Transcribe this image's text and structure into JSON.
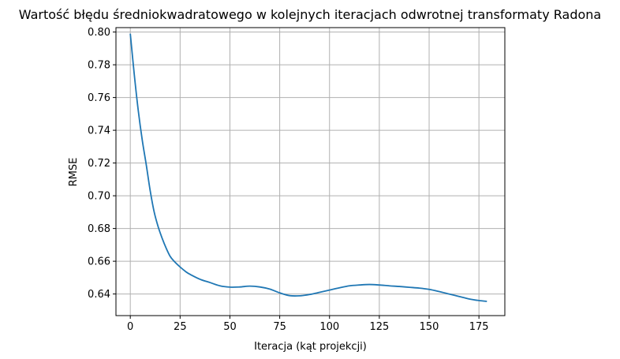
{
  "chart_data": {
    "type": "line",
    "title": "Wartość błędu średniokwadratowego w kolejnych iteracjach odwrotnej transformaty Radona",
    "xlabel": "Iteracja (kąt projekcji)",
    "ylabel": "RMSE",
    "xlim": [
      -7.2,
      188.0
    ],
    "ylim": [
      0.6268,
      0.8027
    ],
    "xticks": [
      0,
      25,
      50,
      75,
      100,
      125,
      150,
      175
    ],
    "xtick_labels": [
      "0",
      "25",
      "50",
      "75",
      "100",
      "125",
      "150",
      "175"
    ],
    "yticks": [
      0.64,
      0.66,
      0.68,
      0.7,
      0.72,
      0.74,
      0.76,
      0.78,
      0.8
    ],
    "ytick_labels": [
      "0.64",
      "0.66",
      "0.68",
      "0.70",
      "0.72",
      "0.74",
      "0.76",
      "0.78",
      "0.80"
    ],
    "grid": true,
    "line_color": "#1f77b4",
    "series": [
      {
        "x": [
          0,
          2,
          4,
          6,
          8,
          10,
          12,
          14,
          16,
          18,
          20,
          22,
          25,
          28,
          30,
          35,
          40,
          45,
          50,
          55,
          60,
          65,
          70,
          75,
          80,
          85,
          90,
          95,
          100,
          105,
          110,
          115,
          120,
          125,
          130,
          135,
          140,
          145,
          150,
          155,
          160,
          165,
          170,
          175,
          179
        ],
        "y": [
          0.799,
          0.774,
          0.752,
          0.734,
          0.719,
          0.703,
          0.69,
          0.681,
          0.674,
          0.668,
          0.663,
          0.66,
          0.6565,
          0.6535,
          0.652,
          0.649,
          0.647,
          0.645,
          0.6442,
          0.6443,
          0.6448,
          0.6443,
          0.643,
          0.6407,
          0.639,
          0.6389,
          0.6397,
          0.641,
          0.6424,
          0.6438,
          0.645,
          0.6455,
          0.6458,
          0.6455,
          0.645,
          0.6446,
          0.6441,
          0.6436,
          0.6428,
          0.6415,
          0.64,
          0.6385,
          0.637,
          0.636,
          0.6355
        ]
      }
    ]
  }
}
